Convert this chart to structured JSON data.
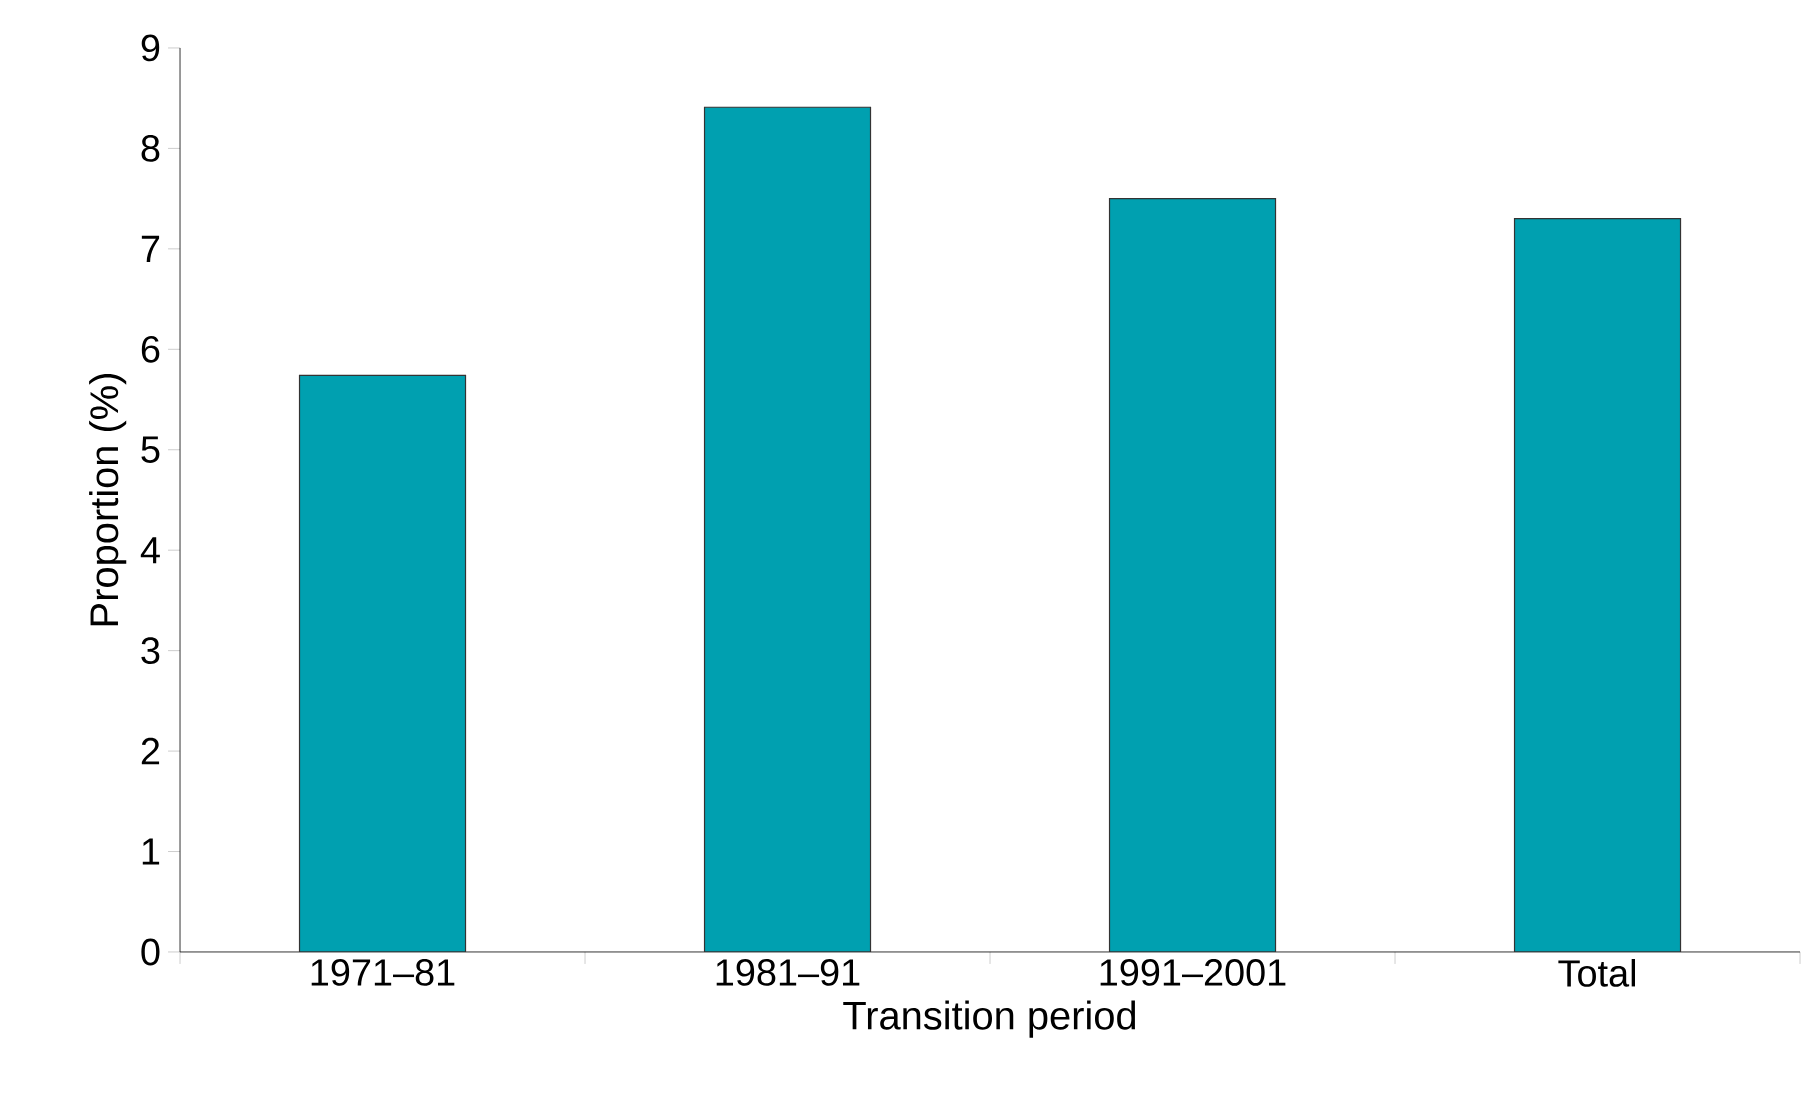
{
  "chart_data": {
    "type": "bar",
    "xlabel": "Transition period",
    "ylabel": "Proportion (%)",
    "categories": [
      "1971–81",
      "1981–91",
      "1991–2001",
      "Total"
    ],
    "values": [
      5.74,
      8.41,
      7.5,
      7.3
    ],
    "color": "#00a0b0",
    "ylim": [
      0,
      9
    ],
    "yticks": [
      0,
      1,
      2,
      3,
      4,
      5,
      6,
      7,
      8,
      9
    ],
    "grid": false
  }
}
